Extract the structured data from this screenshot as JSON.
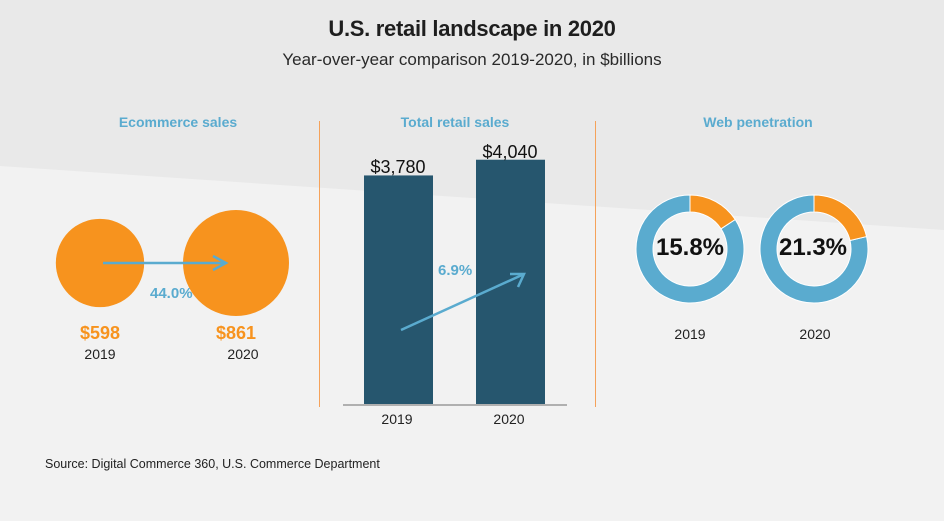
{
  "header": {
    "title": "U.S. retail landscape in 2020",
    "subtitle": "Year-over-year comparison 2019-2020, in $billions"
  },
  "colors": {
    "orange": "#f7931e",
    "blue": "#5aabcf",
    "bar": "#26566e",
    "panel_title": "#5aabcf",
    "band": "#e9e9e9",
    "background": "#f2f2f2"
  },
  "source": "Source: Digital Commerce 360, U.S. Commerce Department",
  "chart_data": [
    {
      "type": "bubble",
      "title": "Ecommerce sales",
      "categories": [
        "2019",
        "2020"
      ],
      "values": [
        598,
        861
      ],
      "value_labels": [
        "$598",
        "$861"
      ],
      "change_label": "44.0%"
    },
    {
      "type": "bar",
      "title": "Total retail sales",
      "categories": [
        "2019",
        "2020"
      ],
      "values": [
        3780,
        4040
      ],
      "value_labels": [
        "$3,780",
        "$4,040"
      ],
      "change_label": "6.9%",
      "ylim": [
        0,
        4300
      ]
    },
    {
      "type": "pie",
      "title": "Web penetration",
      "categories": [
        "2019",
        "2020"
      ],
      "values": [
        15.8,
        21.3
      ],
      "value_labels": [
        "15.8%",
        "21.3%"
      ]
    }
  ]
}
